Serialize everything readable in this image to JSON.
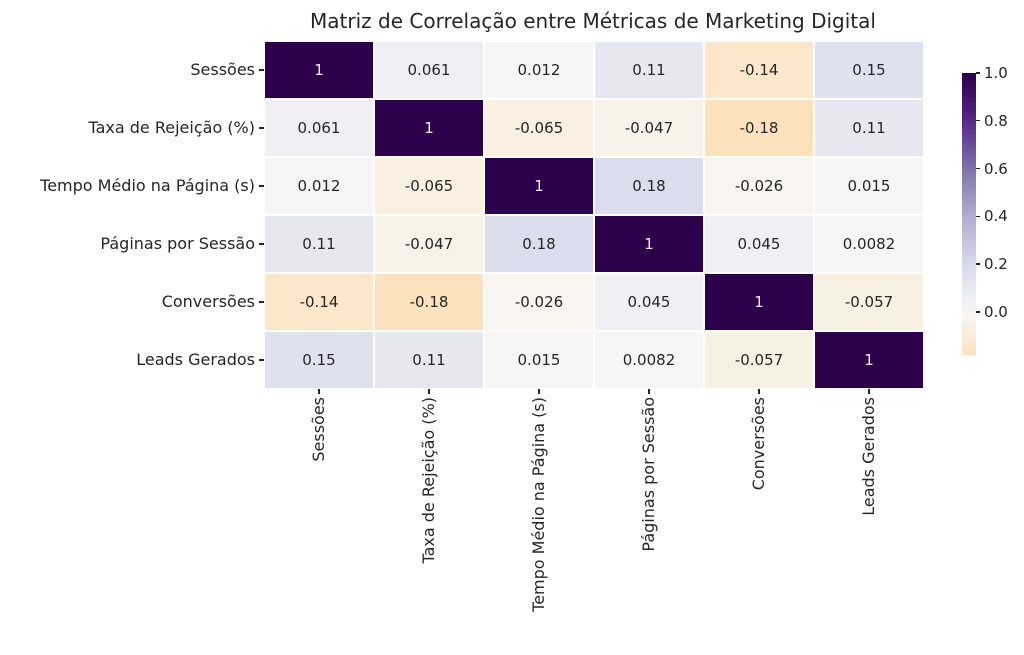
{
  "chart_data": {
    "type": "heatmap",
    "title": "Matriz de Correlação entre Métricas de Marketing Digital",
    "categories": [
      "Sessões",
      "Taxa de Rejeição (%)",
      "Tempo Médio na Página (s)",
      "Páginas por Sessão",
      "Conversões",
      "Leads Gerados"
    ],
    "matrix": [
      [
        1,
        0.061,
        0.012,
        0.11,
        -0.14,
        0.15
      ],
      [
        0.061,
        1,
        -0.065,
        -0.047,
        -0.18,
        0.11
      ],
      [
        0.012,
        -0.065,
        1,
        0.18,
        -0.026,
        0.015
      ],
      [
        0.11,
        -0.047,
        0.18,
        1,
        0.045,
        0.0082
      ],
      [
        -0.14,
        -0.18,
        -0.026,
        0.045,
        1,
        -0.057
      ],
      [
        0.15,
        0.11,
        0.015,
        0.0082,
        -0.057,
        1
      ]
    ],
    "cell_labels": [
      [
        "1",
        "0.061",
        "0.012",
        "0.11",
        "-0.14",
        "0.15"
      ],
      [
        "0.061",
        "1",
        "-0.065",
        "-0.047",
        "-0.18",
        "0.11"
      ],
      [
        "0.012",
        "-0.065",
        "1",
        "0.18",
        "-0.026",
        "0.015"
      ],
      [
        "0.11",
        "-0.047",
        "0.18",
        "1",
        "0.045",
        "0.0082"
      ],
      [
        "-0.14",
        "-0.18",
        "-0.026",
        "0.045",
        "1",
        "-0.057"
      ],
      [
        "0.15",
        "0.11",
        "0.015",
        "0.0082",
        "-0.057",
        "1"
      ]
    ],
    "colorbar": {
      "tick_labels": [
        "1.0",
        "0.8",
        "0.6",
        "0.4",
        "0.2",
        "0.0"
      ],
      "tick_values": [
        1.0,
        0.8,
        0.6,
        0.4,
        0.2,
        0.0
      ],
      "vmin": -0.18,
      "vmax": 1.0
    },
    "colormap": {
      "name": "PuOr",
      "domain": [
        -1,
        1
      ],
      "stops": [
        [
          0.0,
          "#7f3b08"
        ],
        [
          0.1,
          "#b35806"
        ],
        [
          0.2,
          "#e08214"
        ],
        [
          0.3,
          "#fdb863"
        ],
        [
          0.4,
          "#fee0b6"
        ],
        [
          0.5,
          "#f7f7f7"
        ],
        [
          0.6,
          "#d8daeb"
        ],
        [
          0.7,
          "#b2abd2"
        ],
        [
          0.8,
          "#8073ac"
        ],
        [
          0.9,
          "#542788"
        ],
        [
          1.0,
          "#2d004b"
        ]
      ]
    },
    "annotation_colors": {
      "on_light": "#262626",
      "on_dark": "#f0eef5"
    },
    "grid_line_color": "#ffffff",
    "background": "#ffffff"
  }
}
